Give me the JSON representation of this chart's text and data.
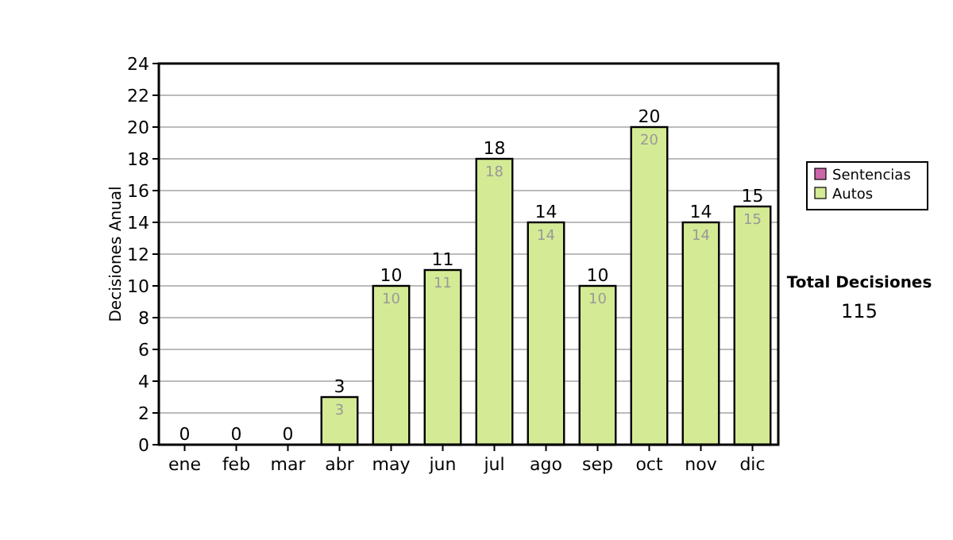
{
  "chart_data": {
    "type": "bar",
    "ylabel": "Decisiones Anual",
    "categories": [
      "ene",
      "feb",
      "mar",
      "abr",
      "may",
      "jun",
      "jul",
      "ago",
      "sep",
      "oct",
      "nov",
      "dic"
    ],
    "series": [
      {
        "name": "Sentencias",
        "color": "#cc66aa",
        "values": [
          0,
          0,
          0,
          0,
          0,
          0,
          0,
          0,
          0,
          0,
          0,
          0
        ]
      },
      {
        "name": "Autos",
        "color": "#d4ea94",
        "values": [
          0,
          0,
          0,
          3,
          10,
          11,
          18,
          14,
          10,
          20,
          14,
          15
        ],
        "value_labels": [
          null,
          null,
          null,
          "3",
          "10",
          "11",
          "18",
          "14",
          "10",
          "20",
          "14",
          "15"
        ]
      }
    ],
    "stacked": true,
    "totals": [
      "0",
      "0",
      "0",
      "3",
      "10",
      "11",
      "18",
      "14",
      "10",
      "20",
      "14",
      "15"
    ],
    "ylim": [
      0,
      24
    ],
    "yticks": [
      0,
      2,
      4,
      6,
      8,
      10,
      12,
      14,
      16,
      18,
      20,
      22,
      24
    ],
    "grid": "y",
    "legend": "right",
    "annotations": [
      "Total Decisiones",
      "115"
    ]
  }
}
